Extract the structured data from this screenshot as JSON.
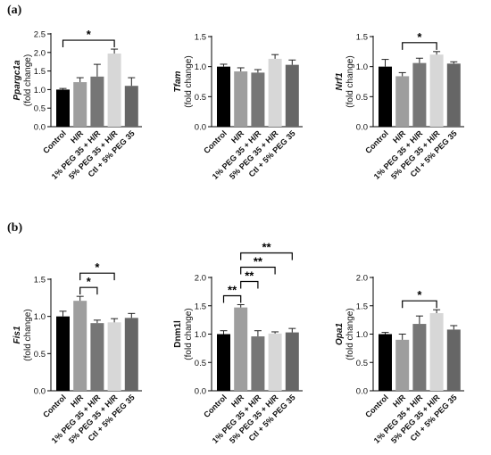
{
  "figure": {
    "panel_labels": [
      "(a)",
      "(b)"
    ]
  },
  "colors": {
    "Control": "#000000",
    "H/R": "#9e9e9e",
    "1% PEG 35 + H/R": "#767676",
    "5% PEG 35 + H/R": "#d7d7d7",
    "Ctl + 5% PEG 35": "#666666"
  },
  "chart_data": [
    {
      "type": "bar",
      "panel": "(a)",
      "categories": [
        "Control",
        "H/R",
        "1% PEG 35 + H/R",
        "5% PEG 35 + H/R",
        "Ctl + 5% PEG 35"
      ],
      "values": [
        1.0,
        1.2,
        1.35,
        1.97,
        1.1
      ],
      "errors": [
        0.03,
        0.12,
        0.33,
        0.12,
        0.22
      ],
      "ylabel_gene": "Ppargc1a",
      "ylabel_unit": "(fold change)",
      "ylim": [
        0,
        2.5
      ],
      "yticks": [
        "0.0",
        "0.5",
        "1.0",
        "1.5",
        "2.0",
        "2.5"
      ],
      "significance": [
        {
          "from": 0,
          "to": 3,
          "label": "*"
        }
      ]
    },
    {
      "type": "bar",
      "panel": "(a)",
      "categories": [
        "Control",
        "H/R",
        "1% PEG 35 + H/R",
        "5% PEG 35 + H/R",
        "Ctl + 5% PEG 35"
      ],
      "values": [
        1.0,
        0.92,
        0.9,
        1.13,
        1.03
      ],
      "errors": [
        0.04,
        0.06,
        0.05,
        0.07,
        0.08
      ],
      "ylabel_gene": "Tfam",
      "ylabel_unit": "(fold change)",
      "ylim": [
        0,
        1.5
      ],
      "yticks": [
        "0.0",
        "0.5",
        "1.0",
        "1.5"
      ],
      "significance": []
    },
    {
      "type": "bar",
      "panel": "(a)",
      "categories": [
        "Control",
        "H/R",
        "1% PEG 35 + H/R",
        "5% PEG 35 + H/R",
        "Ctl + 5% PEG 35"
      ],
      "values": [
        1.0,
        0.84,
        1.06,
        1.2,
        1.05
      ],
      "errors": [
        0.12,
        0.06,
        0.08,
        0.05,
        0.03
      ],
      "ylabel_gene": "Nrf1",
      "ylabel_unit": "(fold change)",
      "ylim": [
        0,
        1.5
      ],
      "yticks": [
        "0.0",
        "0.5",
        "1.0",
        "1.5"
      ],
      "significance": [
        {
          "from": 1,
          "to": 3,
          "label": "*"
        }
      ]
    },
    {
      "type": "bar",
      "panel": "(b)",
      "categories": [
        "Control",
        "H/R",
        "1% PEG 35 + H/R",
        "5% PEG 35 + H/R",
        "Ctl + 5% PEG 35"
      ],
      "values": [
        1.0,
        1.21,
        0.91,
        0.92,
        0.98
      ],
      "errors": [
        0.07,
        0.06,
        0.04,
        0.05,
        0.06
      ],
      "ylabel_gene": "Fis1",
      "ylabel_unit": "(fold change)",
      "ylim": [
        0,
        1.5
      ],
      "yticks": [
        "0.0",
        "0.5",
        "1.0",
        "1.5"
      ],
      "significance": [
        {
          "from": 1,
          "to": 2,
          "label": "*"
        },
        {
          "from": 1,
          "to": 3,
          "label": "*"
        }
      ]
    },
    {
      "type": "bar",
      "panel": "(b)",
      "categories": [
        "Control",
        "H/R",
        "1% PEG 35 + H/R",
        "5% PEG 35 + H/R",
        "Ctl + 5% PEG 35"
      ],
      "values": [
        1.0,
        1.47,
        0.96,
        1.01,
        1.03
      ],
      "errors": [
        0.06,
        0.05,
        0.1,
        0.03,
        0.07
      ],
      "ylabel_gene": "Dnm1l",
      "ylabel_unit": "(fold change)",
      "ylim": [
        0,
        2.0
      ],
      "yticks": [
        "0.0",
        "0.5",
        "1.0",
        "1.5",
        "2.0"
      ],
      "significance": [
        {
          "from": 0,
          "to": 1,
          "label": "**"
        },
        {
          "from": 1,
          "to": 2,
          "label": "**"
        },
        {
          "from": 1,
          "to": 3,
          "label": "**"
        },
        {
          "from": 1,
          "to": 4,
          "label": "**"
        }
      ]
    },
    {
      "type": "bar",
      "panel": "(b)",
      "categories": [
        "Control",
        "H/R",
        "1% PEG 35 + H/R",
        "5% PEG 35 + H/R",
        "Ctl + 5% PEG 35"
      ],
      "values": [
        1.0,
        0.9,
        1.18,
        1.37,
        1.08
      ],
      "errors": [
        0.03,
        0.1,
        0.14,
        0.06,
        0.07
      ],
      "ylabel_gene": "Opa1",
      "ylabel_unit": "(fold change)",
      "ylim": [
        0,
        2.0
      ],
      "yticks": [
        "0.0",
        "0.5",
        "1.0",
        "1.5",
        "2.0"
      ],
      "significance": [
        {
          "from": 1,
          "to": 3,
          "label": "*"
        }
      ]
    }
  ]
}
